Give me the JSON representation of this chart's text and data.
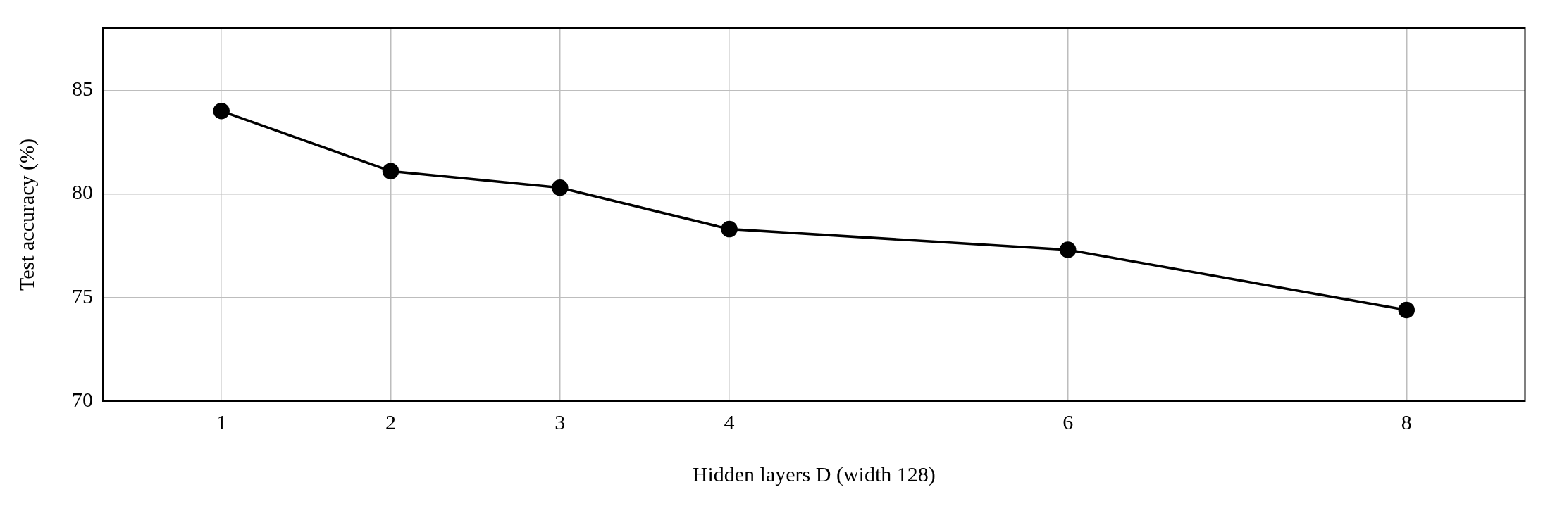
{
  "chart_data": {
    "type": "line",
    "xlabel": "Hidden layers D (width 128)",
    "ylabel": "Test accuracy (%)",
    "x": [
      1,
      2,
      3,
      4,
      6,
      8
    ],
    "series": [
      {
        "color": "#000000",
        "values": [
          84.0,
          81.1,
          80.3,
          78.3,
          77.3,
          74.4
        ]
      }
    ],
    "xlim": [
      0.3,
      8.7
    ],
    "xticks": [
      1,
      2,
      3,
      4,
      6,
      8
    ],
    "ylim": [
      70,
      88
    ],
    "yticks": [
      70,
      75,
      80,
      85
    ],
    "grid": true,
    "marker": "circle",
    "line_style": "solid",
    "legend": false
  }
}
